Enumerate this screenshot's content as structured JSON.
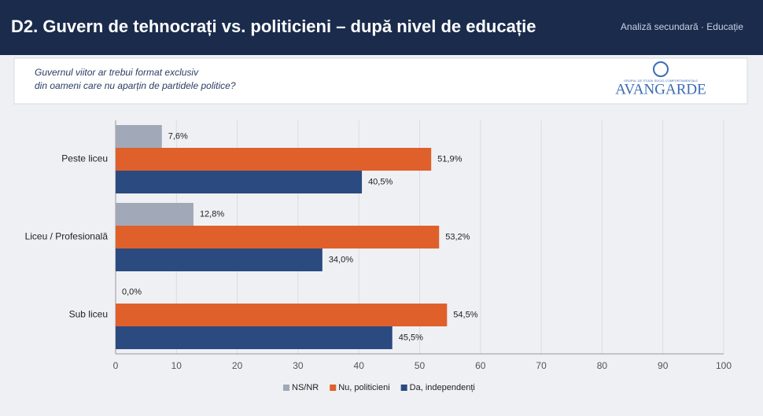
{
  "header": {
    "title": "D2. Guvern de tehnocrați vs. politicieni – după nivel de educație",
    "tag": "Analiză secundară · Educație"
  },
  "question": {
    "lines": [
      "Guvernul viitor ar trebui format exclusiv",
      "din oameni care nu aparțin de partidele politice?"
    ]
  },
  "logo": {
    "small": "GRUPUL DE STUDII SOCIO-COMPORTAMENTALE",
    "name": "AVANGARDE"
  },
  "chart_data": {
    "type": "hbar",
    "categories": [
      "Peste liceu",
      "Liceu / Profesională",
      "Sub liceu"
    ],
    "series": [
      {
        "name": "NS/NR",
        "color": "#a1a9b8",
        "values": [
          7.6,
          12.8,
          0.0
        ],
        "value_labels": [
          "7,6%",
          "12,8%",
          "0,0%"
        ]
      },
      {
        "name": "Nu, politicieni",
        "color": "#e0602b",
        "values": [
          51.9,
          53.2,
          54.5
        ],
        "value_labels": [
          "51,9%",
          "53,2%",
          "54,5%"
        ]
      },
      {
        "name": "Da, independenți",
        "color": "#2b4a80",
        "values": [
          40.5,
          34.0,
          45.5
        ],
        "value_labels": [
          "40,5%",
          "34,0%",
          "45,5%"
        ]
      }
    ],
    "xlim": [
      0,
      100
    ],
    "xticks": [
      0,
      10,
      20,
      30,
      40,
      50,
      60,
      70,
      80,
      90,
      100
    ],
    "grid": true
  }
}
